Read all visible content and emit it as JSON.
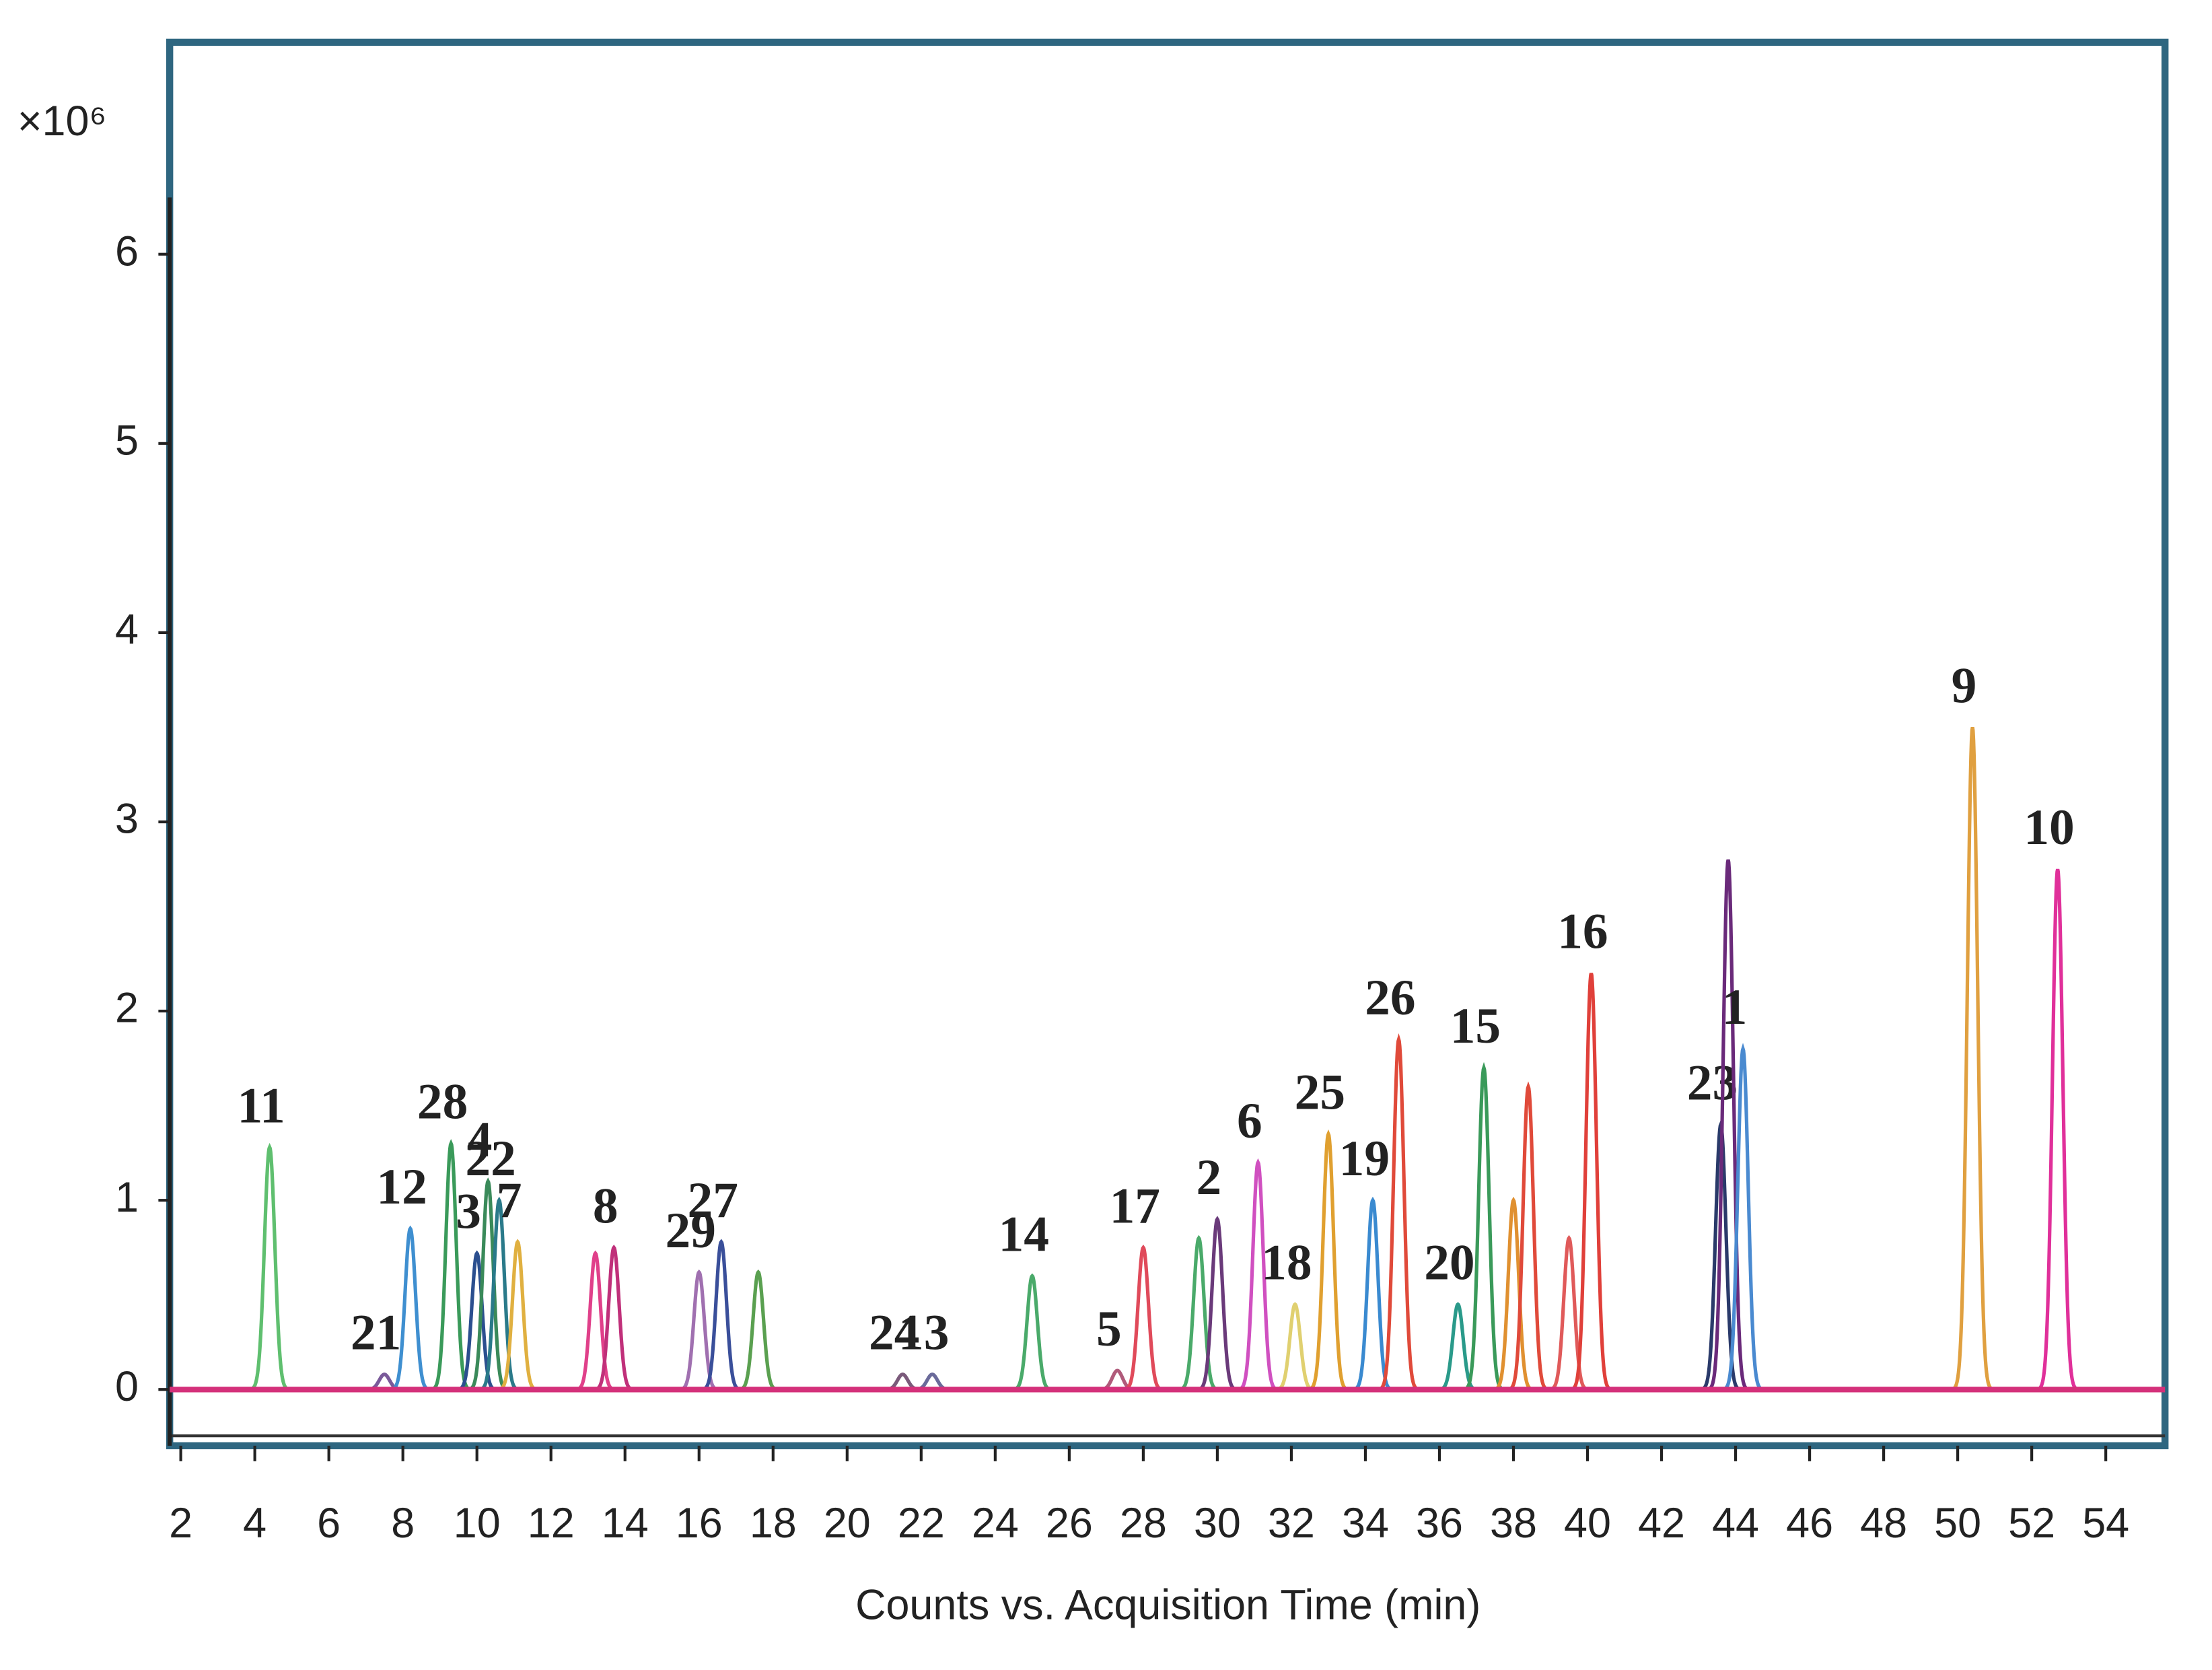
{
  "chart_data": {
    "type": "chromatogram",
    "y_multiplier": "×10⁶",
    "x_label": "Counts vs. Acquisition Time (min)",
    "xlim": [
      1.7,
      55.6
    ],
    "ylim": [
      -0.26,
      6.3
    ],
    "xticks": [
      2,
      4,
      6,
      8,
      10,
      12,
      14,
      16,
      18,
      20,
      22,
      24,
      26,
      28,
      30,
      32,
      34,
      36,
      38,
      40,
      42,
      44,
      46,
      48,
      50,
      52,
      54
    ],
    "yticks": [
      0,
      1,
      2,
      3,
      4,
      5,
      6
    ],
    "baseline_color": "#d4307a",
    "peaks": [
      {
        "label": "11",
        "x": 4.4,
        "height": 1.28,
        "color": "#5fbf6f"
      },
      {
        "label": "21",
        "x": 7.5,
        "height": 0.08,
        "color": "#7a5a9a"
      },
      {
        "label": "12",
        "x": 8.2,
        "height": 0.85,
        "color": "#3f8fd0"
      },
      {
        "label": "28",
        "x": 9.3,
        "height": 1.3,
        "color": "#3a9a5a"
      },
      {
        "label": "3",
        "x": 10.0,
        "height": 0.72,
        "color": "#2b4f8f"
      },
      {
        "label": "4",
        "x": 10.3,
        "height": 1.1,
        "color": "#3a8a5a"
      },
      {
        "label": "22",
        "x": 10.6,
        "height": 1.0,
        "color": "#2a7a8a"
      },
      {
        "label": "7",
        "x": 11.1,
        "height": 0.78,
        "color": "#e0b040"
      },
      {
        "label": null,
        "x": 13.2,
        "height": 0.72,
        "color": "#e0408a"
      },
      {
        "label": "8",
        "x": 13.7,
        "height": 0.75,
        "color": "#c0307a"
      },
      {
        "label": "29",
        "x": 16.0,
        "height": 0.62,
        "color": "#a070b0"
      },
      {
        "label": "27",
        "x": 16.6,
        "height": 0.78,
        "color": "#3a4f9a"
      },
      {
        "label": null,
        "x": 17.6,
        "height": 0.62,
        "color": "#5aa050"
      },
      {
        "label": "24",
        "x": 21.5,
        "height": 0.08,
        "color": "#7a5a7a"
      },
      {
        "label": "13",
        "x": 22.3,
        "height": 0.08,
        "color": "#6a6a9a"
      },
      {
        "label": "14",
        "x": 25.0,
        "height": 0.6,
        "color": "#4aaa6a"
      },
      {
        "label": "5",
        "x": 27.3,
        "height": 0.1,
        "color": "#b05a7a"
      },
      {
        "label": "17",
        "x": 28.0,
        "height": 0.75,
        "color": "#e04a5a"
      },
      {
        "label": null,
        "x": 29.5,
        "height": 0.8,
        "color": "#4aaa6a"
      },
      {
        "label": "2",
        "x": 30.0,
        "height": 0.9,
        "color": "#6a3a7a"
      },
      {
        "label": "6",
        "x": 31.1,
        "height": 1.2,
        "color": "#d050c0"
      },
      {
        "label": "18",
        "x": 32.1,
        "height": 0.45,
        "color": "#e0d070"
      },
      {
        "label": "25",
        "x": 33.0,
        "height": 1.35,
        "color": "#e0a030"
      },
      {
        "label": "19",
        "x": 34.2,
        "height": 1.0,
        "color": "#3a8ad0"
      },
      {
        "label": "26",
        "x": 34.9,
        "height": 1.85,
        "color": "#e04a3a"
      },
      {
        "label": "20",
        "x": 36.5,
        "height": 0.45,
        "color": "#2a9a8a"
      },
      {
        "label": "15",
        "x": 37.2,
        "height": 1.7,
        "color": "#3a9a5a"
      },
      {
        "label": null,
        "x": 38.0,
        "height": 1.0,
        "color": "#e09030"
      },
      {
        "label": null,
        "x": 38.4,
        "height": 1.6,
        "color": "#e04a3a"
      },
      {
        "label": null,
        "x": 39.5,
        "height": 0.8,
        "color": "#e05a5a"
      },
      {
        "label": "16",
        "x": 40.1,
        "height": 2.2,
        "color": "#e0403a"
      },
      {
        "label": "23",
        "x": 43.6,
        "height": 1.4,
        "color": "#2a3a6a"
      },
      {
        "label": null,
        "x": 43.8,
        "height": 2.8,
        "color": "#6a2a7a"
      },
      {
        "label": "1",
        "x": 44.2,
        "height": 1.8,
        "color": "#4a8ad0"
      },
      {
        "label": "9",
        "x": 50.4,
        "height": 3.5,
        "color": "#e0a040"
      },
      {
        "label": "10",
        "x": 52.7,
        "height": 2.75,
        "color": "#e0309a"
      }
    ]
  }
}
